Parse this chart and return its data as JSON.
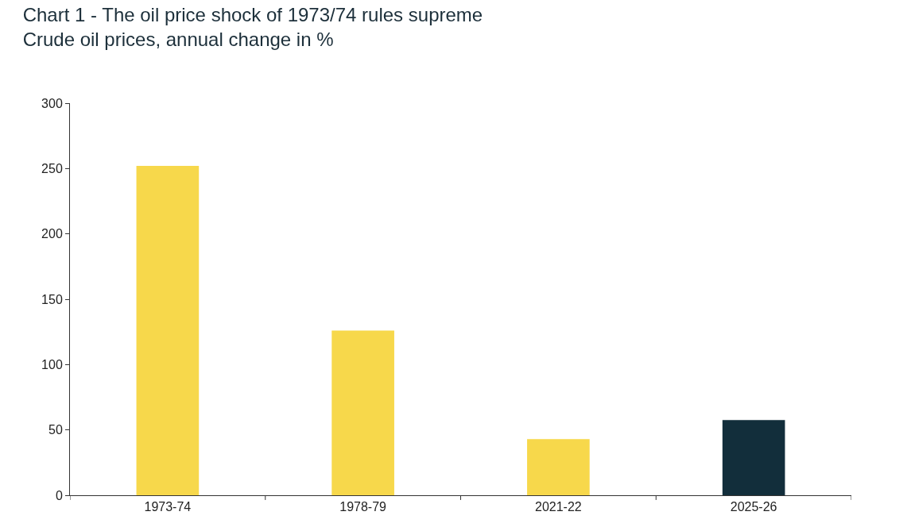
{
  "chart_data": {
    "type": "bar",
    "title": "Chart 1 - The oil price shock of 1973/74 rules supreme",
    "subtitle": "Crude oil prices, annual change in %",
    "categories": [
      "1973-74",
      "1978-79",
      "2021-22",
      "2025-26"
    ],
    "values": [
      252,
      126,
      43,
      57.5
    ],
    "colors": [
      "#f7d84b",
      "#f7d84b",
      "#f7d84b",
      "#122e3b"
    ],
    "ylim": [
      0,
      300
    ],
    "yticks": [
      0,
      50,
      100,
      150,
      200,
      250,
      300
    ]
  }
}
